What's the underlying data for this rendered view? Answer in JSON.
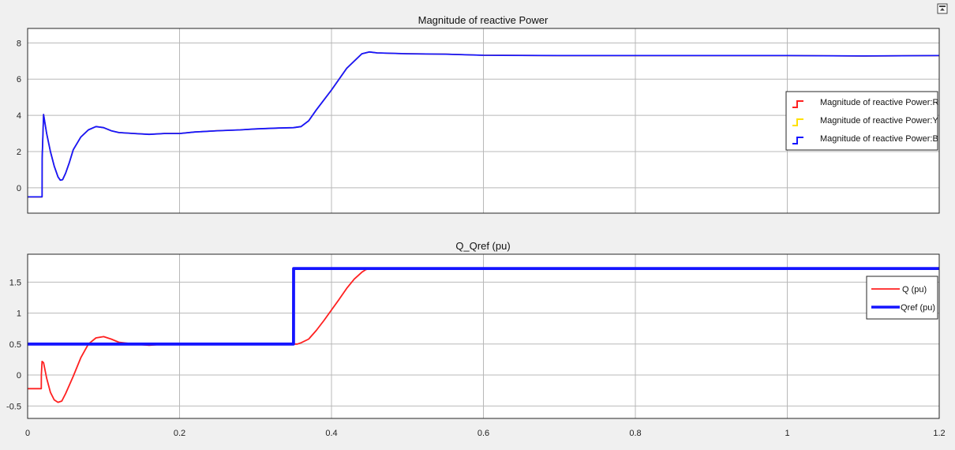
{
  "window": {
    "restore_icon": "restore-window-icon"
  },
  "colors": {
    "plot_bg": "#ffffff",
    "grid": "#b8b8b8",
    "axes": "#262626",
    "red": "#ff2020",
    "yellow": "#ffe000",
    "blue": "#1515ff"
  },
  "chart_data": [
    {
      "type": "line",
      "title": "Magnitude of reactive Power",
      "xlabel": "",
      "ylabel": "",
      "xlim": [
        0,
        1.2
      ],
      "ylim": [
        -1.4,
        8.8
      ],
      "xticks": [
        0,
        0.2,
        0.4,
        0.6,
        0.8,
        1,
        1.2
      ],
      "yticks": [
        0,
        2,
        4,
        6,
        8
      ],
      "xtick_labels_shown": false,
      "grid": true,
      "legend": "right",
      "series": [
        {
          "name": "Magnitude of reactive Power:R",
          "color": "#ff2020",
          "x": [
            0,
            0.019,
            0.0191,
            0.021,
            0.025,
            0.03,
            0.035,
            0.04,
            0.043,
            0.046,
            0.05,
            0.055,
            0.06,
            0.07,
            0.08,
            0.09,
            0.1,
            0.11,
            0.12,
            0.14,
            0.16,
            0.18,
            0.2,
            0.22,
            0.25,
            0.28,
            0.3,
            0.33,
            0.35,
            0.36,
            0.37,
            0.38,
            0.4,
            0.42,
            0.44,
            0.45,
            0.46,
            0.5,
            0.55,
            0.6,
            0.7,
            0.8,
            0.9,
            1.0,
            1.1,
            1.2
          ],
          "y": [
            -0.5,
            -0.5,
            1.6,
            4.05,
            3.0,
            2.0,
            1.2,
            0.6,
            0.42,
            0.45,
            0.8,
            1.4,
            2.1,
            2.8,
            3.2,
            3.38,
            3.32,
            3.15,
            3.05,
            3.0,
            2.95,
            3.0,
            3.0,
            3.08,
            3.15,
            3.2,
            3.25,
            3.3,
            3.32,
            3.38,
            3.7,
            4.3,
            5.4,
            6.6,
            7.4,
            7.5,
            7.45,
            7.4,
            7.38,
            7.32,
            7.3,
            7.3,
            7.3,
            7.3,
            7.28,
            7.3
          ]
        },
        {
          "name": "Magnitude of reactive Power:Y",
          "color": "#ffe000",
          "x": [
            0,
            0.019,
            0.0191,
            0.021,
            0.025,
            0.03,
            0.035,
            0.04,
            0.043,
            0.046,
            0.05,
            0.055,
            0.06,
            0.07,
            0.08,
            0.09,
            0.1,
            0.11,
            0.12,
            0.14,
            0.16,
            0.18,
            0.2,
            0.22,
            0.25,
            0.28,
            0.3,
            0.33,
            0.35,
            0.36,
            0.37,
            0.38,
            0.4,
            0.42,
            0.44,
            0.45,
            0.46,
            0.5,
            0.55,
            0.6,
            0.7,
            0.8,
            0.9,
            1.0,
            1.1,
            1.2
          ],
          "y": [
            -0.5,
            -0.5,
            1.6,
            4.05,
            3.0,
            2.0,
            1.2,
            0.6,
            0.42,
            0.45,
            0.8,
            1.4,
            2.1,
            2.8,
            3.2,
            3.38,
            3.32,
            3.15,
            3.05,
            3.0,
            2.95,
            3.0,
            3.0,
            3.08,
            3.15,
            3.2,
            3.25,
            3.3,
            3.32,
            3.38,
            3.7,
            4.3,
            5.4,
            6.6,
            7.4,
            7.5,
            7.45,
            7.4,
            7.38,
            7.32,
            7.3,
            7.3,
            7.3,
            7.3,
            7.28,
            7.3
          ]
        },
        {
          "name": "Magnitude of reactive Power:B",
          "color": "#1515ff",
          "x": [
            0,
            0.019,
            0.0191,
            0.021,
            0.025,
            0.03,
            0.035,
            0.04,
            0.043,
            0.046,
            0.05,
            0.055,
            0.06,
            0.07,
            0.08,
            0.09,
            0.1,
            0.11,
            0.12,
            0.14,
            0.16,
            0.18,
            0.2,
            0.22,
            0.25,
            0.28,
            0.3,
            0.33,
            0.35,
            0.36,
            0.37,
            0.38,
            0.4,
            0.42,
            0.44,
            0.45,
            0.46,
            0.5,
            0.55,
            0.6,
            0.7,
            0.8,
            0.9,
            1.0,
            1.1,
            1.2
          ],
          "y": [
            -0.5,
            -0.5,
            1.6,
            4.05,
            3.0,
            2.0,
            1.2,
            0.6,
            0.42,
            0.45,
            0.8,
            1.4,
            2.1,
            2.8,
            3.2,
            3.38,
            3.32,
            3.15,
            3.05,
            3.0,
            2.95,
            3.0,
            3.0,
            3.08,
            3.15,
            3.2,
            3.25,
            3.3,
            3.32,
            3.38,
            3.7,
            4.3,
            5.4,
            6.6,
            7.4,
            7.5,
            7.45,
            7.4,
            7.38,
            7.32,
            7.3,
            7.3,
            7.3,
            7.3,
            7.28,
            7.3
          ]
        }
      ]
    },
    {
      "type": "line",
      "title": "Q_Qref (pu)",
      "xlabel": "",
      "ylabel": "",
      "xlim": [
        0,
        1.2
      ],
      "ylim": [
        -0.7,
        1.95
      ],
      "xticks": [
        0,
        0.2,
        0.4,
        0.6,
        0.8,
        1,
        1.2
      ],
      "xtick_labels": [
        "0",
        "0.2",
        "0.4",
        "0.6",
        "0.8",
        "1",
        "1.2"
      ],
      "yticks": [
        -0.5,
        0,
        0.5,
        1,
        1.5
      ],
      "ytick_labels": [
        "-0.5",
        "0",
        "0.5",
        "1",
        "1.5"
      ],
      "grid": true,
      "legend": "right",
      "series": [
        {
          "name": "Q (pu)",
          "color": "#ff2020",
          "x": [
            0,
            0.018,
            0.0181,
            0.019,
            0.021,
            0.025,
            0.03,
            0.035,
            0.04,
            0.045,
            0.05,
            0.06,
            0.07,
            0.08,
            0.09,
            0.1,
            0.11,
            0.12,
            0.14,
            0.16,
            0.18,
            0.2,
            0.25,
            0.3,
            0.35,
            0.355,
            0.36,
            0.37,
            0.38,
            0.39,
            0.4,
            0.41,
            0.42,
            0.43,
            0.44,
            0.445,
            0.45,
            0.5,
            0.6,
            0.8,
            1.0,
            1.2
          ],
          "y": [
            -0.22,
            -0.22,
            0.0,
            0.22,
            0.2,
            -0.05,
            -0.28,
            -0.4,
            -0.44,
            -0.42,
            -0.3,
            -0.02,
            0.28,
            0.5,
            0.6,
            0.62,
            0.58,
            0.53,
            0.5,
            0.48,
            0.5,
            0.5,
            0.5,
            0.5,
            0.5,
            0.5,
            0.52,
            0.58,
            0.72,
            0.88,
            1.05,
            1.22,
            1.4,
            1.55,
            1.66,
            1.7,
            1.72,
            1.72,
            1.72,
            1.72,
            1.72,
            1.72
          ]
        },
        {
          "name": "Qref (pu)",
          "color": "#1515ff",
          "x": [
            0,
            0.35,
            0.3501,
            1.2
          ],
          "y": [
            0.5,
            0.5,
            1.72,
            1.72
          ]
        }
      ]
    }
  ]
}
